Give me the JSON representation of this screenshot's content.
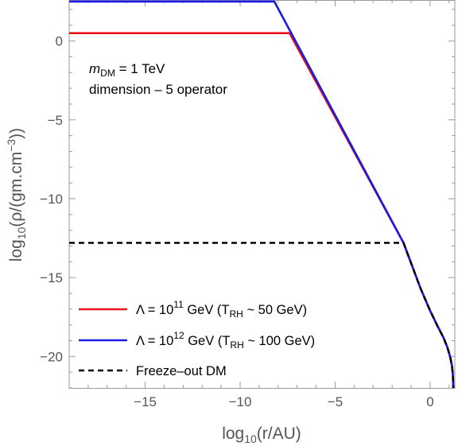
{
  "chart_data": {
    "type": "line",
    "xlabel": {
      "base": "log",
      "sub": "10",
      "rest": "(r/AU)"
    },
    "ylabel": {
      "base": "log",
      "sub": "10",
      "mid": "(ρ/(gm.cm",
      "sup": "−3",
      "end": "))"
    },
    "xlim": [
      -19,
      1.3
    ],
    "ylim": [
      -22,
      2.6
    ],
    "x_ticks": [
      -15,
      -10,
      -5,
      0
    ],
    "x_tick_labels": [
      "−15",
      "−10",
      "−5",
      "0"
    ],
    "y_ticks": [
      0,
      -5,
      -10,
      -15,
      -20
    ],
    "y_tick_labels": [
      "0",
      "−5",
      "−10",
      "−15",
      "−20"
    ],
    "grid": false,
    "legend_placement": "bottom-left",
    "annotations": {
      "mass_sym": "m",
      "mass_sub": "DM",
      "mass_val": " = 1 TeV",
      "operator": "dimension – 5 operator"
    },
    "series": [
      {
        "color": "#e8141a",
        "style": "solid",
        "legend": {
          "pre": "Λ = 10",
          "sup": "11",
          "mid": " GeV (T",
          "sub": "RH",
          "post": " ~ 50 GeV)"
        },
        "x": [
          -19.0,
          -7.4,
          -1.4,
          -0.5,
          0.0,
          0.4,
          0.7,
          0.9,
          1.05,
          1.15,
          1.2,
          1.22
        ],
        "y": [
          0.5,
          0.5,
          -12.8,
          -15.7,
          -17.1,
          -18.1,
          -18.8,
          -19.4,
          -20.0,
          -20.6,
          -21.2,
          -22.0
        ]
      },
      {
        "color": "#1a1ae8",
        "style": "solid",
        "legend": {
          "pre": "Λ = 10",
          "sup": "12",
          "mid": " GeV (T",
          "sub": "RH",
          "post": " ~ 100 GeV)"
        },
        "x": [
          -19.0,
          -8.2,
          -1.4,
          -0.5,
          0.0,
          0.4,
          0.7,
          0.9,
          1.05,
          1.15,
          1.2,
          1.22
        ],
        "y": [
          2.5,
          2.5,
          -12.8,
          -15.7,
          -17.1,
          -18.1,
          -18.8,
          -19.4,
          -20.0,
          -20.6,
          -21.2,
          -22.0
        ]
      },
      {
        "color": "#000000",
        "style": "dashed",
        "legend": {
          "pre": "Freeze–out DM",
          "sup": "",
          "mid": "",
          "sub": "",
          "post": ""
        },
        "x": [
          -19.0,
          -1.4,
          -0.5,
          0.0,
          0.4,
          0.7,
          0.9,
          1.05,
          1.15,
          1.2,
          1.22
        ],
        "y": [
          -12.8,
          -12.8,
          -15.7,
          -17.1,
          -18.1,
          -18.8,
          -19.4,
          -20.0,
          -20.6,
          -21.2,
          -22.0
        ]
      }
    ]
  }
}
